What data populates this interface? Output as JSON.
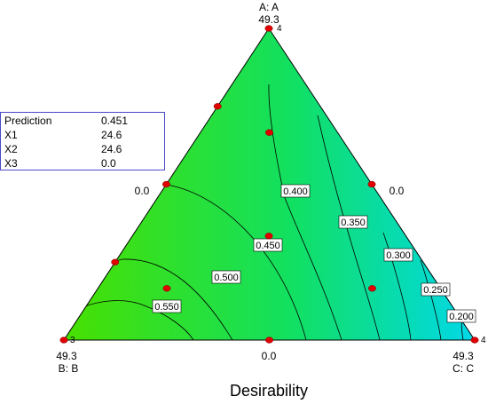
{
  "chart_data": {
    "type": "ternary-contour",
    "title": "Desirability",
    "vertices": {
      "top": {
        "name": "A: A",
        "value": "49.3",
        "point_label": "4"
      },
      "left": {
        "name": "B: B",
        "value": "49.3",
        "point_label": "3"
      },
      "right": {
        "name": "C: C",
        "value": "49.3",
        "point_label": "4"
      }
    },
    "edge_ticks": {
      "left": "0.0",
      "right": "0.0",
      "bottom": "0.0"
    },
    "contour_levels": [
      {
        "label": "0.200"
      },
      {
        "label": "0.250"
      },
      {
        "label": "0.300"
      },
      {
        "label": "0.350"
      },
      {
        "label": "0.400"
      },
      {
        "label": "0.450"
      },
      {
        "label": "0.500"
      },
      {
        "label": "0.550"
      }
    ],
    "design_points": [
      {
        "A": 1,
        "B": 0,
        "C": 0
      },
      {
        "A": 0,
        "B": 1,
        "C": 0
      },
      {
        "A": 0,
        "B": 0,
        "C": 1
      },
      {
        "A": 0.5,
        "B": 0.5,
        "C": 0
      },
      {
        "A": 0.5,
        "B": 0,
        "C": 0.5
      },
      {
        "A": 0,
        "B": 0.5,
        "C": 0.5
      },
      {
        "A": 0.667,
        "B": 0.167,
        "C": 0.167
      },
      {
        "A": 0.167,
        "B": 0.667,
        "C": 0.167
      },
      {
        "A": 0.167,
        "B": 0.167,
        "C": 0.667
      },
      {
        "A": 0.333,
        "B": 0.333,
        "C": 0.333
      },
      {
        "A": 0.75,
        "B": 0.25,
        "C": 0
      },
      {
        "A": 0.25,
        "B": 0.75,
        "C": 0
      }
    ],
    "colors": {
      "high": "#48e000",
      "mid": "#12e060",
      "low": "#00d8e8",
      "point": "#e00000"
    }
  },
  "prediction_box": {
    "rows": [
      {
        "label": "Prediction",
        "value": "0.451"
      },
      {
        "label": "X1",
        "value": "24.6"
      },
      {
        "label": "X2",
        "value": "24.6"
      },
      {
        "label": "X3",
        "value": "0.0"
      }
    ]
  }
}
